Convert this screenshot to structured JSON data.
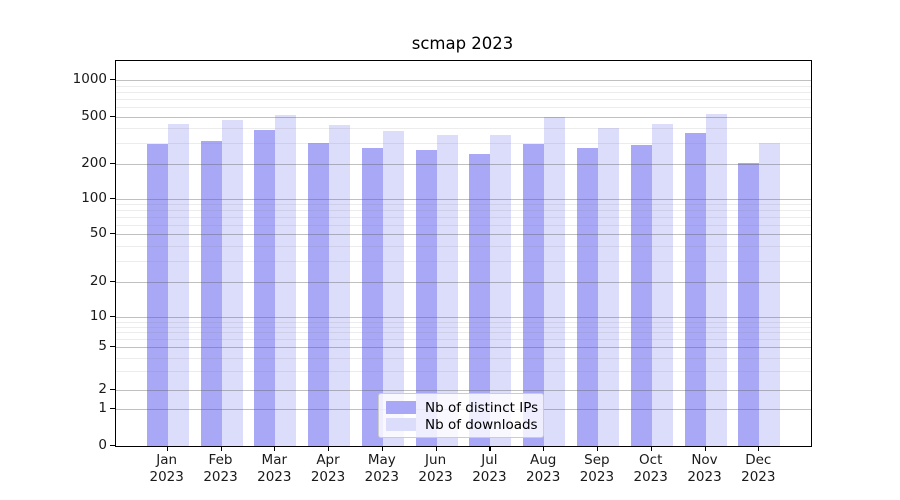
{
  "title": "scmap 2023",
  "colors": {
    "distinct_ips": "#a8a8f7",
    "downloads": "#dcdcfb",
    "grid_major": "rgba(90,90,90,0.38)",
    "grid_minor": "rgba(120,120,120,0.14)",
    "axis": "#000000"
  },
  "y_axis": {
    "tick_labels": [
      "1000",
      "500",
      "200",
      "100",
      "50",
      "20",
      "10",
      "5",
      "2",
      "1",
      "0"
    ],
    "tick_values": [
      1000,
      500,
      200,
      100,
      50,
      20,
      10,
      5,
      2,
      1,
      0
    ],
    "minor_values": [
      3,
      4,
      6,
      7,
      8,
      9,
      30,
      40,
      60,
      70,
      80,
      90,
      300,
      400,
      600,
      700,
      800,
      900
    ]
  },
  "x_axis": {
    "months": [
      "Jan",
      "Feb",
      "Mar",
      "Apr",
      "May",
      "Jun",
      "Jul",
      "Aug",
      "Sep",
      "Oct",
      "Nov",
      "Dec"
    ],
    "year": "2023"
  },
  "legend": {
    "items": [
      {
        "label": "Nb of distinct IPs",
        "color_key": "distinct_ips"
      },
      {
        "label": "Nb of downloads",
        "color_key": "downloads"
      }
    ]
  },
  "chart_data": {
    "type": "bar",
    "title": "scmap 2023",
    "categories": [
      "Jan 2023",
      "Feb 2023",
      "Mar 2023",
      "Apr 2023",
      "May 2023",
      "Jun 2023",
      "Jul 2023",
      "Aug 2023",
      "Sep 2023",
      "Oct 2023",
      "Nov 2023",
      "Dec 2023"
    ],
    "series": [
      {
        "name": "Nb of distinct IPs",
        "values": [
          295,
          314,
          389,
          300,
          273,
          264,
          243,
          298,
          276,
          289,
          369,
          206
        ]
      },
      {
        "name": "Nb of downloads",
        "values": [
          440,
          468,
          516,
          428,
          383,
          351,
          351,
          501,
          402,
          434,
          527,
          304
        ]
      }
    ],
    "xlabel": "",
    "ylabel": "",
    "yscale": "symlog",
    "yticks": [
      0,
      1,
      2,
      5,
      10,
      20,
      50,
      100,
      200,
      500,
      1000
    ],
    "ylim": [
      0,
      1300
    ],
    "grid": true,
    "legend_position": "lower center"
  }
}
